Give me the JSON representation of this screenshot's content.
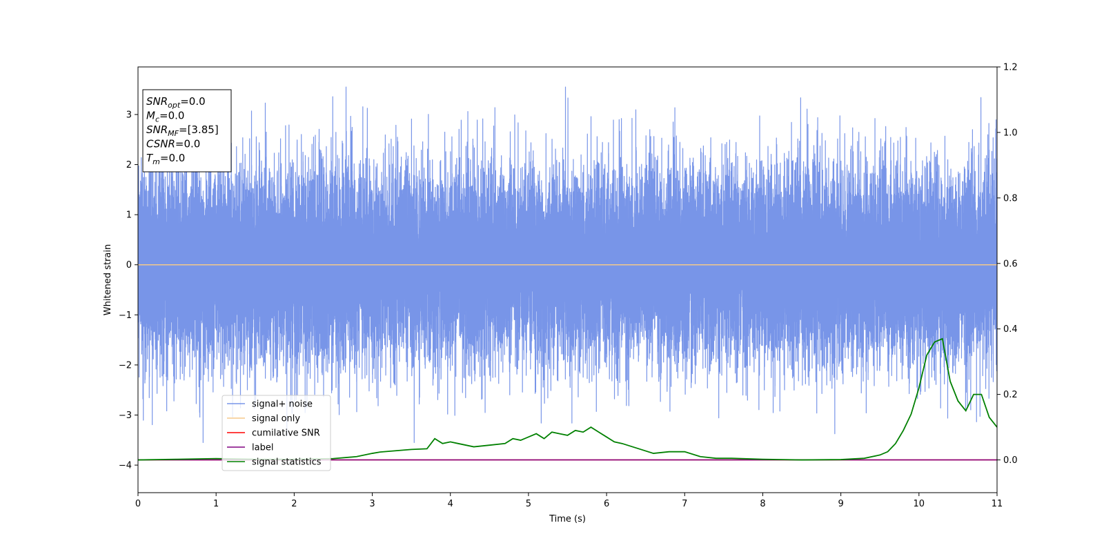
{
  "chart_data": {
    "type": "line",
    "xlabel": "Time (s)",
    "ylabel": "Whitened strain",
    "xlim": [
      0,
      11
    ],
    "ylim_left": [
      -4.55,
      3.95
    ],
    "ylim_right": [
      -0.1,
      1.2
    ],
    "x_ticks": [
      "0",
      "1",
      "2",
      "3",
      "4",
      "5",
      "6",
      "7",
      "8",
      "9",
      "10",
      "11"
    ],
    "y_left_ticks": [
      "−4",
      "−3",
      "−2",
      "−1",
      "0",
      "1",
      "2",
      "3"
    ],
    "y_left_tick_values": [
      -4,
      -3,
      -2,
      -1,
      0,
      1,
      2,
      3
    ],
    "y_right_ticks": [
      "0.0",
      "0.2",
      "0.4",
      "0.6",
      "0.8",
      "1.0",
      "1.2"
    ],
    "y_right_tick_values": [
      0.0,
      0.2,
      0.4,
      0.6,
      0.8,
      1.0,
      1.2
    ],
    "grid": false,
    "legend_position": "lower-left",
    "info_box": [
      {
        "base": "SNR",
        "sub": "opt",
        "rest": "=0.0"
      },
      {
        "base": "M",
        "sub": "c",
        "rest": "=0.0"
      },
      {
        "base": "SNR",
        "sub": "MF",
        "rest": "=[3.85]"
      },
      {
        "base": "CSNR",
        "sub": "",
        "rest": "=0.0"
      },
      {
        "base": "T",
        "sub": "m",
        "rest": "=0.0"
      }
    ],
    "series": [
      {
        "name": "signal+ noise",
        "axis": "left",
        "color": "#7895e8",
        "description": "whitened noise, approx gaussian, range about -3.5 to 3.55",
        "sample_rate": 2048,
        "x_range": [
          0,
          11
        ],
        "y_range": [
          -3.55,
          3.55
        ]
      },
      {
        "name": "signal only",
        "axis": "left",
        "color": "#f5c98a",
        "x": [
          0,
          11
        ],
        "y": [
          0,
          0
        ]
      },
      {
        "name": "cumilative SNR",
        "axis": "right",
        "color": "#ff0000",
        "x": [
          0,
          11
        ],
        "y": [
          0,
          0
        ]
      },
      {
        "name": "label",
        "axis": "right",
        "color": "#800080",
        "x": [
          0,
          11
        ],
        "y": [
          0,
          0
        ]
      },
      {
        "name": "signal statistics",
        "axis": "right",
        "color": "#008000",
        "x": [
          0,
          0.5,
          1.0,
          1.5,
          2.0,
          2.5,
          2.8,
          3.0,
          3.1,
          3.3,
          3.5,
          3.7,
          3.8,
          3.9,
          4.0,
          4.1,
          4.3,
          4.5,
          4.7,
          4.8,
          4.9,
          5.0,
          5.1,
          5.2,
          5.3,
          5.4,
          5.5,
          5.6,
          5.7,
          5.8,
          5.9,
          6.0,
          6.1,
          6.2,
          6.4,
          6.6,
          6.8,
          7.0,
          7.2,
          7.4,
          7.6,
          8.0,
          8.5,
          9.0,
          9.3,
          9.5,
          9.6,
          9.7,
          9.8,
          9.9,
          10.0,
          10.1,
          10.2,
          10.3,
          10.4,
          10.5,
          10.6,
          10.7,
          10.8,
          10.9,
          11.0
        ],
        "y": [
          0.0,
          0.002,
          0.004,
          0.002,
          0.002,
          0.004,
          0.01,
          0.02,
          0.024,
          0.028,
          0.032,
          0.034,
          0.065,
          0.05,
          0.055,
          0.05,
          0.04,
          0.045,
          0.05,
          0.065,
          0.06,
          0.07,
          0.08,
          0.065,
          0.085,
          0.08,
          0.075,
          0.09,
          0.085,
          0.1,
          0.085,
          0.07,
          0.055,
          0.05,
          0.035,
          0.02,
          0.025,
          0.025,
          0.01,
          0.005,
          0.005,
          0.002,
          0.0,
          0.001,
          0.005,
          0.015,
          0.025,
          0.05,
          0.09,
          0.14,
          0.22,
          0.32,
          0.36,
          0.37,
          0.24,
          0.18,
          0.15,
          0.2,
          0.2,
          0.13,
          0.1
        ]
      }
    ]
  }
}
